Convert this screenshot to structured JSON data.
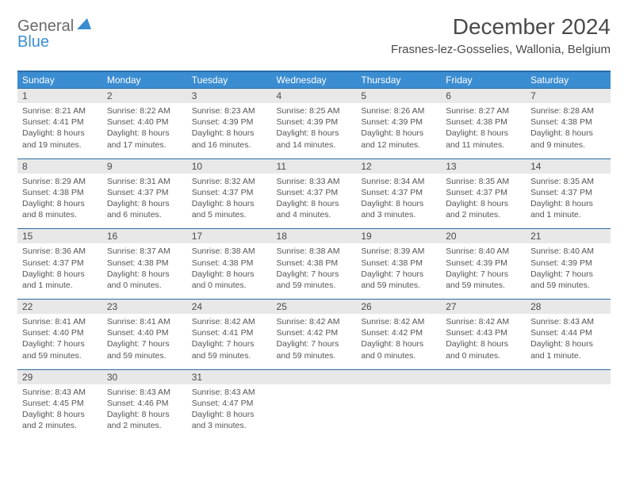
{
  "brand": {
    "part1": "General",
    "part2": "Blue",
    "logo_color": "#3b8dd1"
  },
  "header": {
    "title": "December 2024",
    "location": "Frasnes-lez-Gosselies, Wallonia, Belgium"
  },
  "colors": {
    "header_bg": "#3b8dd1",
    "header_border": "#2a6ca6",
    "daynum_bg": "#e8e8e8",
    "text": "#4a4a4a"
  },
  "daysOfWeek": [
    "Sunday",
    "Monday",
    "Tuesday",
    "Wednesday",
    "Thursday",
    "Friday",
    "Saturday"
  ],
  "weeks": [
    [
      {
        "n": "1",
        "sr": "Sunrise: 8:21 AM",
        "ss": "Sunset: 4:41 PM",
        "d1": "Daylight: 8 hours",
        "d2": "and 19 minutes."
      },
      {
        "n": "2",
        "sr": "Sunrise: 8:22 AM",
        "ss": "Sunset: 4:40 PM",
        "d1": "Daylight: 8 hours",
        "d2": "and 17 minutes."
      },
      {
        "n": "3",
        "sr": "Sunrise: 8:23 AM",
        "ss": "Sunset: 4:39 PM",
        "d1": "Daylight: 8 hours",
        "d2": "and 16 minutes."
      },
      {
        "n": "4",
        "sr": "Sunrise: 8:25 AM",
        "ss": "Sunset: 4:39 PM",
        "d1": "Daylight: 8 hours",
        "d2": "and 14 minutes."
      },
      {
        "n": "5",
        "sr": "Sunrise: 8:26 AM",
        "ss": "Sunset: 4:39 PM",
        "d1": "Daylight: 8 hours",
        "d2": "and 12 minutes."
      },
      {
        "n": "6",
        "sr": "Sunrise: 8:27 AM",
        "ss": "Sunset: 4:38 PM",
        "d1": "Daylight: 8 hours",
        "d2": "and 11 minutes."
      },
      {
        "n": "7",
        "sr": "Sunrise: 8:28 AM",
        "ss": "Sunset: 4:38 PM",
        "d1": "Daylight: 8 hours",
        "d2": "and 9 minutes."
      }
    ],
    [
      {
        "n": "8",
        "sr": "Sunrise: 8:29 AM",
        "ss": "Sunset: 4:38 PM",
        "d1": "Daylight: 8 hours",
        "d2": "and 8 minutes."
      },
      {
        "n": "9",
        "sr": "Sunrise: 8:31 AM",
        "ss": "Sunset: 4:37 PM",
        "d1": "Daylight: 8 hours",
        "d2": "and 6 minutes."
      },
      {
        "n": "10",
        "sr": "Sunrise: 8:32 AM",
        "ss": "Sunset: 4:37 PM",
        "d1": "Daylight: 8 hours",
        "d2": "and 5 minutes."
      },
      {
        "n": "11",
        "sr": "Sunrise: 8:33 AM",
        "ss": "Sunset: 4:37 PM",
        "d1": "Daylight: 8 hours",
        "d2": "and 4 minutes."
      },
      {
        "n": "12",
        "sr": "Sunrise: 8:34 AM",
        "ss": "Sunset: 4:37 PM",
        "d1": "Daylight: 8 hours",
        "d2": "and 3 minutes."
      },
      {
        "n": "13",
        "sr": "Sunrise: 8:35 AM",
        "ss": "Sunset: 4:37 PM",
        "d1": "Daylight: 8 hours",
        "d2": "and 2 minutes."
      },
      {
        "n": "14",
        "sr": "Sunrise: 8:35 AM",
        "ss": "Sunset: 4:37 PM",
        "d1": "Daylight: 8 hours",
        "d2": "and 1 minute."
      }
    ],
    [
      {
        "n": "15",
        "sr": "Sunrise: 8:36 AM",
        "ss": "Sunset: 4:37 PM",
        "d1": "Daylight: 8 hours",
        "d2": "and 1 minute."
      },
      {
        "n": "16",
        "sr": "Sunrise: 8:37 AM",
        "ss": "Sunset: 4:38 PM",
        "d1": "Daylight: 8 hours",
        "d2": "and 0 minutes."
      },
      {
        "n": "17",
        "sr": "Sunrise: 8:38 AM",
        "ss": "Sunset: 4:38 PM",
        "d1": "Daylight: 8 hours",
        "d2": "and 0 minutes."
      },
      {
        "n": "18",
        "sr": "Sunrise: 8:38 AM",
        "ss": "Sunset: 4:38 PM",
        "d1": "Daylight: 7 hours",
        "d2": "and 59 minutes."
      },
      {
        "n": "19",
        "sr": "Sunrise: 8:39 AM",
        "ss": "Sunset: 4:38 PM",
        "d1": "Daylight: 7 hours",
        "d2": "and 59 minutes."
      },
      {
        "n": "20",
        "sr": "Sunrise: 8:40 AM",
        "ss": "Sunset: 4:39 PM",
        "d1": "Daylight: 7 hours",
        "d2": "and 59 minutes."
      },
      {
        "n": "21",
        "sr": "Sunrise: 8:40 AM",
        "ss": "Sunset: 4:39 PM",
        "d1": "Daylight: 7 hours",
        "d2": "and 59 minutes."
      }
    ],
    [
      {
        "n": "22",
        "sr": "Sunrise: 8:41 AM",
        "ss": "Sunset: 4:40 PM",
        "d1": "Daylight: 7 hours",
        "d2": "and 59 minutes."
      },
      {
        "n": "23",
        "sr": "Sunrise: 8:41 AM",
        "ss": "Sunset: 4:40 PM",
        "d1": "Daylight: 7 hours",
        "d2": "and 59 minutes."
      },
      {
        "n": "24",
        "sr": "Sunrise: 8:42 AM",
        "ss": "Sunset: 4:41 PM",
        "d1": "Daylight: 7 hours",
        "d2": "and 59 minutes."
      },
      {
        "n": "25",
        "sr": "Sunrise: 8:42 AM",
        "ss": "Sunset: 4:42 PM",
        "d1": "Daylight: 7 hours",
        "d2": "and 59 minutes."
      },
      {
        "n": "26",
        "sr": "Sunrise: 8:42 AM",
        "ss": "Sunset: 4:42 PM",
        "d1": "Daylight: 8 hours",
        "d2": "and 0 minutes."
      },
      {
        "n": "27",
        "sr": "Sunrise: 8:42 AM",
        "ss": "Sunset: 4:43 PM",
        "d1": "Daylight: 8 hours",
        "d2": "and 0 minutes."
      },
      {
        "n": "28",
        "sr": "Sunrise: 8:43 AM",
        "ss": "Sunset: 4:44 PM",
        "d1": "Daylight: 8 hours",
        "d2": "and 1 minute."
      }
    ],
    [
      {
        "n": "29",
        "sr": "Sunrise: 8:43 AM",
        "ss": "Sunset: 4:45 PM",
        "d1": "Daylight: 8 hours",
        "d2": "and 2 minutes."
      },
      {
        "n": "30",
        "sr": "Sunrise: 8:43 AM",
        "ss": "Sunset: 4:46 PM",
        "d1": "Daylight: 8 hours",
        "d2": "and 2 minutes."
      },
      {
        "n": "31",
        "sr": "Sunrise: 8:43 AM",
        "ss": "Sunset: 4:47 PM",
        "d1": "Daylight: 8 hours",
        "d2": "and 3 minutes."
      },
      null,
      null,
      null,
      null
    ]
  ]
}
